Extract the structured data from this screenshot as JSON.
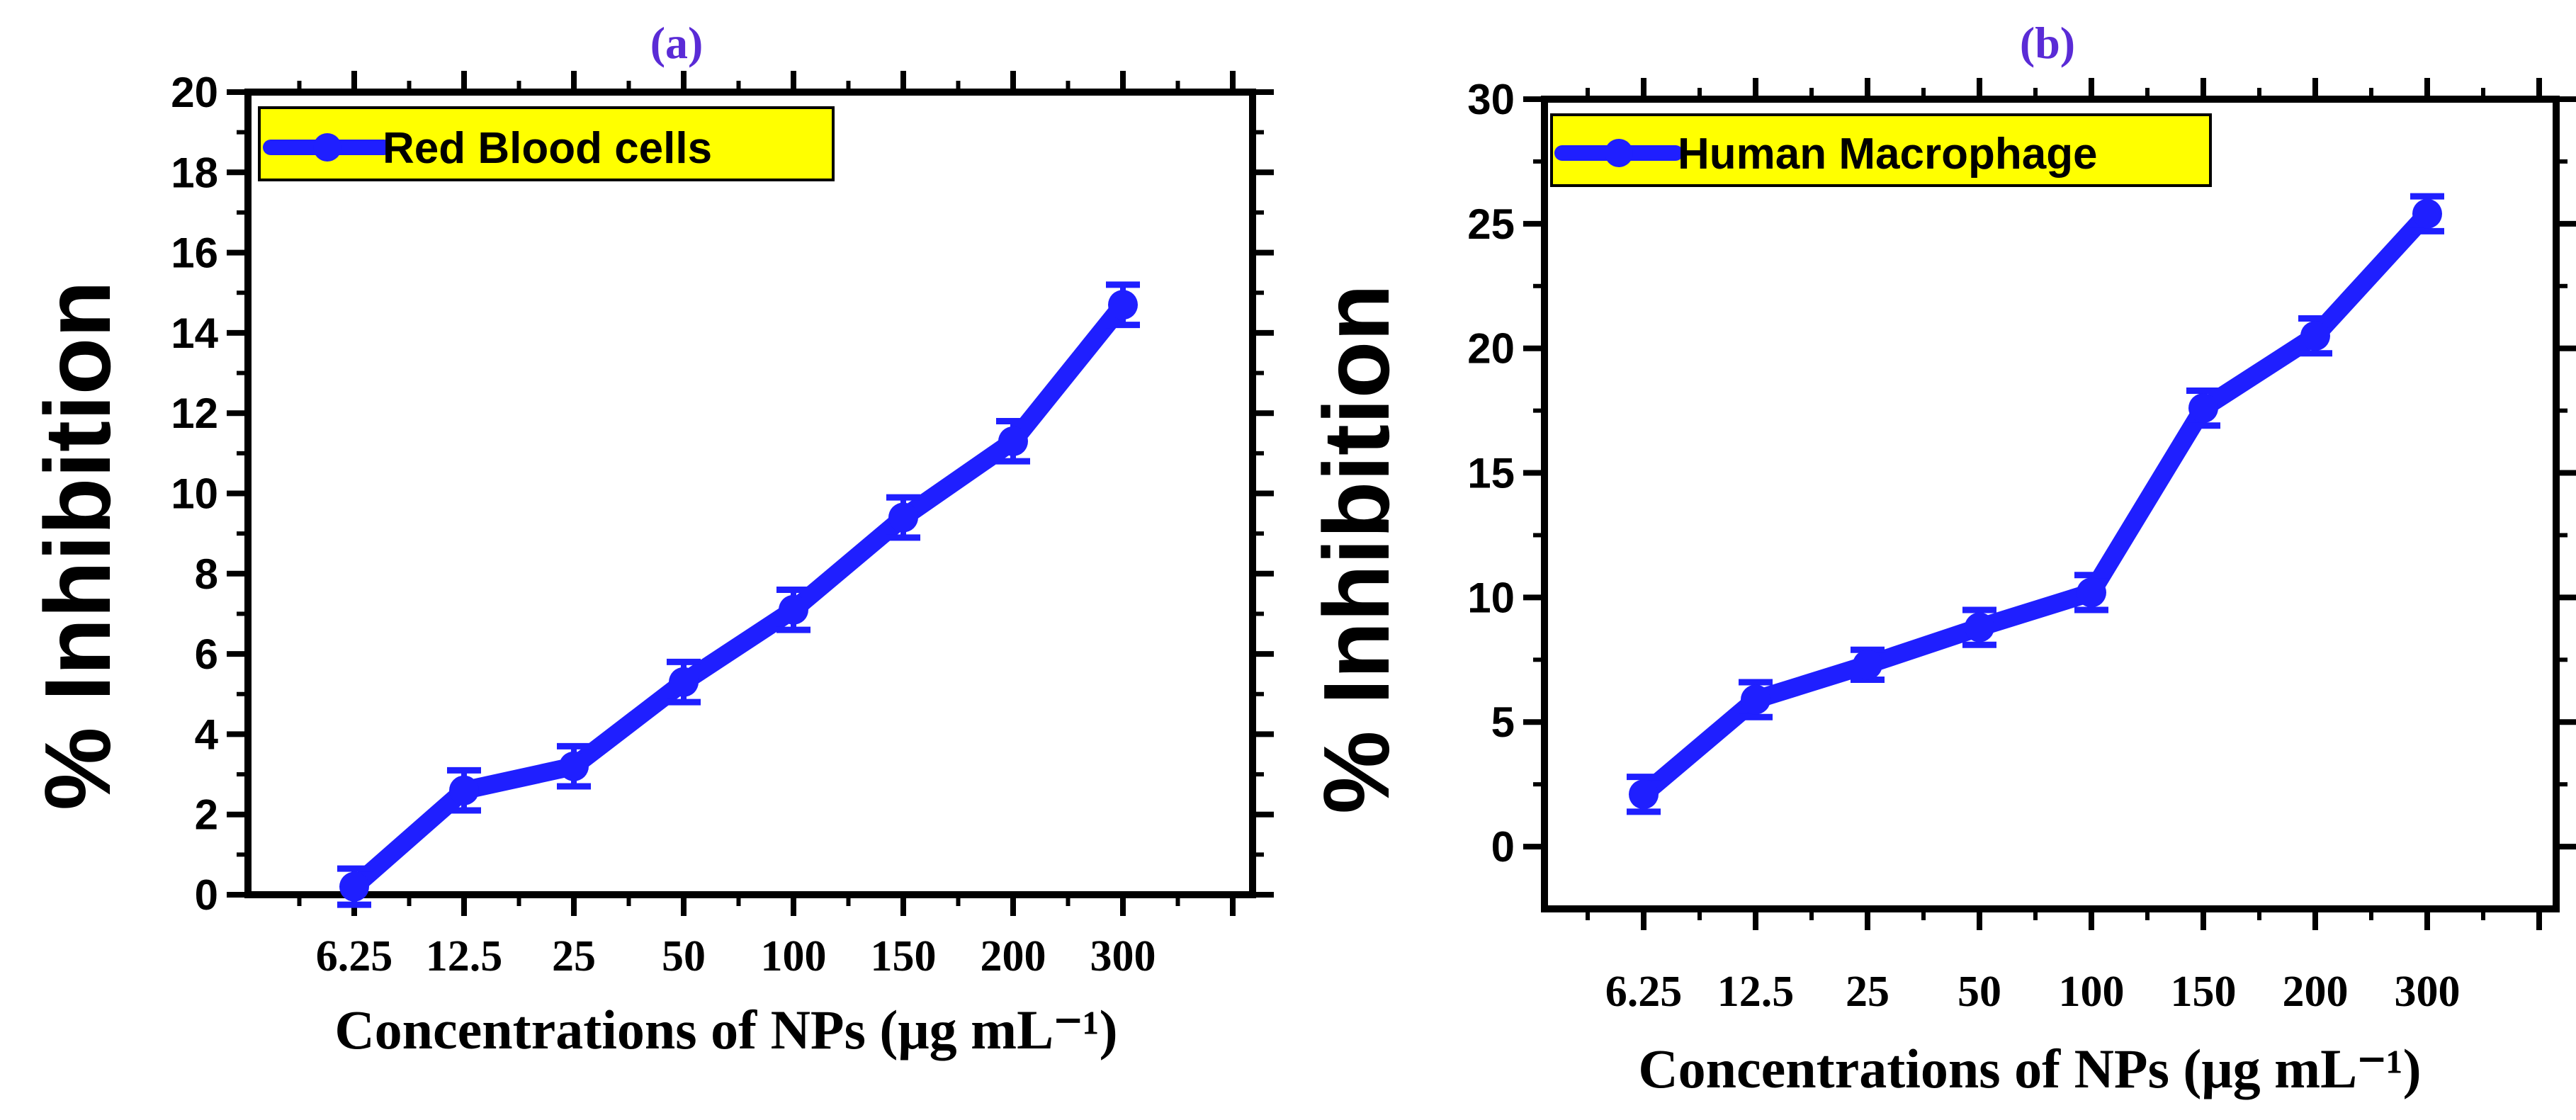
{
  "chart_data": [
    {
      "type": "line",
      "panel_label": "(a)",
      "categories": [
        "6.25",
        "12.5",
        "25",
        "50",
        "100",
        "150",
        "200",
        "300"
      ],
      "series": [
        {
          "name": "Red Blood cells",
          "color": "#1f1fff",
          "values": [
            0.2,
            2.6,
            3.2,
            5.3,
            7.1,
            9.4,
            11.3,
            14.7
          ],
          "errors": [
            0.45,
            0.5,
            0.5,
            0.5,
            0.5,
            0.5,
            0.5,
            0.5
          ]
        }
      ],
      "yticks": [
        "0",
        "2",
        "4",
        "6",
        "8",
        "10",
        "12",
        "14",
        "16",
        "18",
        "20"
      ],
      "ylim": [
        0,
        20
      ],
      "title": "",
      "xlabel": "Concentrations of NPs (μg mL⁻¹)",
      "ylabel": "% Inhibition",
      "legend_position": "top-left",
      "legend_bg": "#ffff00",
      "grid": false
    },
    {
      "type": "line",
      "panel_label": "(b)",
      "categories": [
        "6.25",
        "12.5",
        "25",
        "50",
        "100",
        "150",
        "200",
        "300"
      ],
      "series": [
        {
          "name": "Human Macrophage",
          "color": "#1f1fff",
          "values": [
            2.1,
            5.9,
            7.3,
            8.8,
            10.2,
            17.6,
            20.5,
            25.4
          ],
          "errors": [
            0.7,
            0.7,
            0.6,
            0.7,
            0.7,
            0.7,
            0.7,
            0.7
          ]
        }
      ],
      "yticks": [
        "0",
        "5",
        "10",
        "15",
        "20",
        "25",
        "30"
      ],
      "ylim": [
        -2.5,
        30
      ],
      "title": "",
      "xlabel": "Concentrations of NPs (μg mL⁻¹)",
      "ylabel": "% Inhibition",
      "legend_position": "top-left",
      "legend_bg": "#ffff00",
      "grid": false
    }
  ]
}
